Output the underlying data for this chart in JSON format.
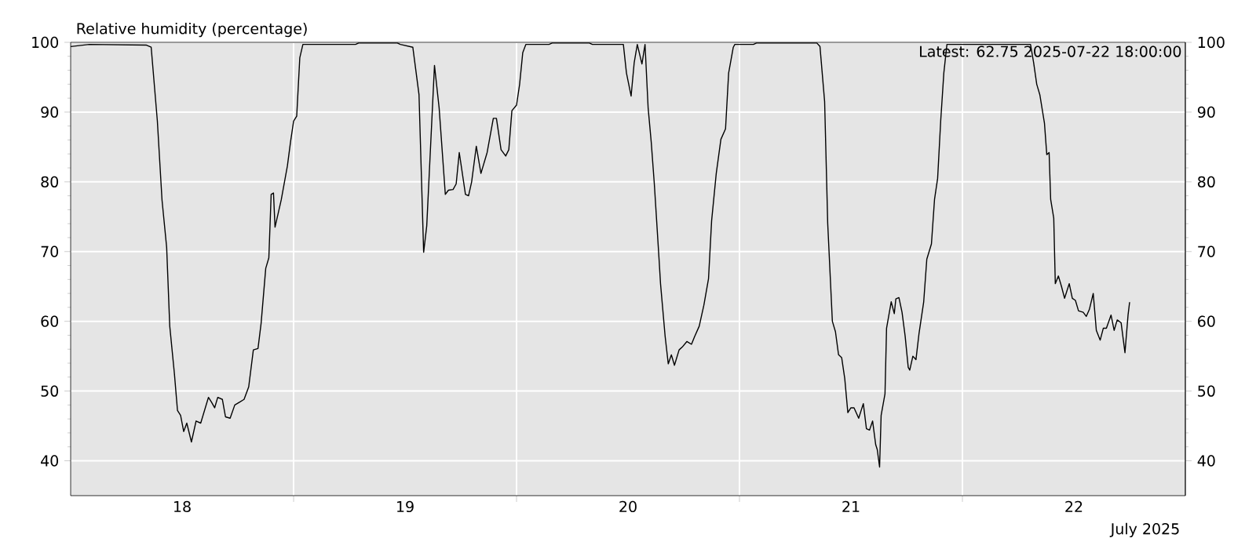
{
  "chart_data": {
    "type": "line",
    "ylabel": "Relative humidity (percentage)",
    "xlabel": "July 2025",
    "annotations": [
      "Latest: 62.75   2025-07-22 18:00:00"
    ],
    "grid": true,
    "xlim": [
      "2025-07-18T00:00",
      "2025-07-23T00:00"
    ],
    "xticks": [
      {
        "value": "2025-07-18T12:00",
        "label": "18"
      },
      {
        "value": "2025-07-19T00:00",
        "label": null
      },
      {
        "value": "2025-07-19T12:00",
        "label": "19"
      },
      {
        "value": "2025-07-20T00:00",
        "label": null
      },
      {
        "value": "2025-07-20T12:00",
        "label": "20"
      },
      {
        "value": "2025-07-21T00:00",
        "label": null
      },
      {
        "value": "2025-07-21T12:00",
        "label": "21"
      },
      {
        "value": "2025-07-22T00:00",
        "label": null
      },
      {
        "value": "2025-07-22T12:00",
        "label": "22"
      }
    ],
    "ylim": [
      35,
      100
    ],
    "yticks": [
      40,
      50,
      60,
      70,
      80,
      90,
      100
    ],
    "y2lim": [
      35,
      100
    ],
    "y2ticks": [
      40,
      50,
      60,
      70,
      80,
      90,
      100
    ],
    "x": [
      "2025-07-18T00:00",
      "2025-07-18T02:00",
      "2025-07-18T08:10",
      "2025-07-18T08:40",
      "2025-07-18T09:20",
      "2025-07-18T09:50",
      "2025-07-18T10:20",
      "2025-07-18T10:40",
      "2025-07-18T11:10",
      "2025-07-18T11:30",
      "2025-07-18T11:50",
      "2025-07-18T12:10",
      "2025-07-18T12:30",
      "2025-07-18T13:00",
      "2025-07-18T13:30",
      "2025-07-18T14:00",
      "2025-07-18T14:50",
      "2025-07-18T15:10",
      "2025-07-18T15:30",
      "2025-07-18T15:50",
      "2025-07-18T16:20",
      "2025-07-18T16:40",
      "2025-07-18T17:10",
      "2025-07-18T17:40",
      "2025-07-18T18:10",
      "2025-07-18T18:40",
      "2025-07-18T19:10",
      "2025-07-18T19:40",
      "2025-07-18T20:10",
      "2025-07-18T20:30",
      "2025-07-18T21:00",
      "2025-07-18T21:20",
      "2025-07-18T21:35",
      "2025-07-18T21:50",
      "2025-07-18T22:00",
      "2025-07-18T22:40",
      "2025-07-18T23:20",
      "2025-07-18T23:40",
      "2025-07-19T00:00",
      "2025-07-19T00:20",
      "2025-07-19T00:40",
      "2025-07-19T01:00",
      "2025-07-19T06:40",
      "2025-07-19T07:00",
      "2025-07-19T11:10",
      "2025-07-19T11:30",
      "2025-07-19T12:50",
      "2025-07-19T13:30",
      "2025-07-19T14:00",
      "2025-07-19T14:20",
      "2025-07-19T15:10",
      "2025-07-19T15:40",
      "2025-07-19T16:20",
      "2025-07-19T16:40",
      "2025-07-19T17:10",
      "2025-07-19T17:30",
      "2025-07-19T17:50",
      "2025-07-19T18:30",
      "2025-07-19T18:50",
      "2025-07-19T19:10",
      "2025-07-19T19:40",
      "2025-07-19T20:10",
      "2025-07-19T20:50",
      "2025-07-19T21:30",
      "2025-07-19T21:50",
      "2025-07-19T22:20",
      "2025-07-19T22:50",
      "2025-07-19T23:10",
      "2025-07-19T23:30",
      "2025-07-20T00:00",
      "2025-07-20T00:20",
      "2025-07-20T00:40",
      "2025-07-20T01:00",
      "2025-07-20T03:30",
      "2025-07-20T03:50",
      "2025-07-20T07:50",
      "2025-07-20T08:10",
      "2025-07-20T11:30",
      "2025-07-20T11:50",
      "2025-07-20T12:20",
      "2025-07-20T12:40",
      "2025-07-20T13:00",
      "2025-07-20T13:30",
      "2025-07-20T13:50",
      "2025-07-20T14:10",
      "2025-07-20T14:30",
      "2025-07-20T14:50",
      "2025-07-20T15:20",
      "2025-07-20T15:30",
      "2025-07-20T16:00",
      "2025-07-20T16:20",
      "2025-07-20T16:40",
      "2025-07-20T17:00",
      "2025-07-20T17:30",
      "2025-07-20T17:50",
      "2025-07-20T18:20",
      "2025-07-20T18:50",
      "2025-07-20T19:10",
      "2025-07-20T19:40",
      "2025-07-20T20:10",
      "2025-07-20T20:40",
      "2025-07-20T21:00",
      "2025-07-20T21:30",
      "2025-07-20T22:00",
      "2025-07-20T22:30",
      "2025-07-20T22:50",
      "2025-07-20T23:20",
      "2025-07-20T23:30",
      "2025-07-21T01:30",
      "2025-07-21T01:50",
      "2025-07-21T08:20",
      "2025-07-21T08:40",
      "2025-07-21T09:10",
      "2025-07-21T09:30",
      "2025-07-21T10:00",
      "2025-07-21T10:20",
      "2025-07-21T10:40",
      "2025-07-21T11:00",
      "2025-07-21T11:20",
      "2025-07-21T11:40",
      "2025-07-21T12:00",
      "2025-07-21T12:20",
      "2025-07-21T12:50",
      "2025-07-21T13:20",
      "2025-07-21T13:40",
      "2025-07-21T14:00",
      "2025-07-21T14:20",
      "2025-07-21T14:40",
      "2025-07-21T14:50",
      "2025-07-21T15:05",
      "2025-07-21T15:15",
      "2025-07-21T15:40",
      "2025-07-21T15:50",
      "2025-07-21T16:20",
      "2025-07-21T16:40",
      "2025-07-21T16:50",
      "2025-07-21T17:10",
      "2025-07-21T17:30",
      "2025-07-21T17:50",
      "2025-07-21T18:10",
      "2025-07-21T18:20",
      "2025-07-21T18:40",
      "2025-07-21T19:00",
      "2025-07-21T19:20",
      "2025-07-21T19:50",
      "2025-07-21T20:10",
      "2025-07-21T20:40",
      "2025-07-21T21:00",
      "2025-07-21T21:20",
      "2025-07-21T21:40",
      "2025-07-21T22:00",
      "2025-07-21T22:20",
      "2025-07-22T07:20",
      "2025-07-22T07:40",
      "2025-07-22T08:00",
      "2025-07-22T08:20",
      "2025-07-22T08:50",
      "2025-07-22T09:05",
      "2025-07-22T09:20",
      "2025-07-22T09:30",
      "2025-07-22T09:50",
      "2025-07-22T10:00",
      "2025-07-22T10:20",
      "2025-07-22T10:40",
      "2025-07-22T11:00",
      "2025-07-22T11:30",
      "2025-07-22T11:50",
      "2025-07-22T12:10",
      "2025-07-22T12:30",
      "2025-07-22T13:00",
      "2025-07-22T13:20",
      "2025-07-22T13:40",
      "2025-07-22T14:05",
      "2025-07-22T14:25",
      "2025-07-22T14:50",
      "2025-07-22T15:10",
      "2025-07-22T15:30",
      "2025-07-22T16:00",
      "2025-07-22T16:20",
      "2025-07-22T16:40",
      "2025-07-22T17:05",
      "2025-07-22T17:30",
      "2025-07-22T17:50",
      "2025-07-22T18:00"
    ],
    "series": [
      {
        "color": "#000000",
        "values": [
          99.4,
          99.7,
          99.6,
          99.3,
          88.7,
          77.4,
          70.6,
          59.3,
          52.5,
          47.2,
          46.5,
          44.2,
          45.4,
          42.7,
          45.7,
          45.4,
          49.1,
          48.4,
          47.6,
          49.1,
          48.8,
          46.3,
          46.1,
          48.0,
          48.4,
          48.8,
          50.6,
          55.9,
          56.1,
          59.7,
          67.6,
          69.1,
          78.2,
          78.4,
          73.5,
          77.4,
          82.3,
          85.7,
          88.7,
          89.4,
          97.8,
          99.7,
          99.7,
          99.9,
          99.9,
          99.7,
          99.3,
          92.5,
          69.9,
          73.7,
          96.7,
          90.6,
          78.2,
          78.8,
          78.9,
          79.7,
          84.2,
          78.2,
          78.0,
          80.0,
          85.1,
          81.2,
          84.2,
          89.1,
          89.1,
          84.6,
          83.7,
          84.6,
          90.2,
          91.0,
          94.0,
          98.5,
          99.7,
          99.7,
          99.9,
          99.9,
          99.7,
          99.7,
          95.6,
          92.3,
          97.1,
          99.7,
          96.9,
          99.7,
          90.6,
          85.7,
          79.7,
          69.1,
          65.4,
          57.8,
          53.9,
          55.2,
          53.7,
          55.9,
          56.3,
          57.1,
          56.7,
          57.8,
          59.3,
          62.3,
          66.1,
          74.4,
          81.2,
          86.1,
          87.6,
          95.6,
          99.3,
          99.7,
          99.7,
          99.9,
          99.9,
          99.4,
          91.5,
          74.0,
          60.0,
          58.5,
          55.2,
          54.8,
          51.8,
          46.9,
          47.6,
          47.6,
          46.1,
          48.2,
          44.6,
          44.4,
          45.7,
          42.3,
          41.6,
          39.1,
          46.5,
          49.6,
          59.0,
          62.8,
          61.1,
          63.2,
          63.4,
          61.3,
          57.9,
          53.4,
          53.0,
          55.0,
          54.5,
          58.3,
          62.8,
          68.9,
          71.1,
          77.5,
          80.5,
          88.8,
          95.6,
          99.7,
          99.7,
          97.1,
          94.0,
          92.5,
          88.4,
          83.9,
          84.2,
          77.5,
          74.8,
          65.4,
          66.5,
          65.0,
          63.3,
          65.4,
          63.3,
          63.0,
          61.5,
          61.3,
          60.7,
          61.7,
          64.0,
          58.7,
          57.3,
          59.0,
          59.0,
          60.9,
          58.7,
          60.2,
          59.8,
          55.5,
          60.9,
          62.75
        ]
      }
    ]
  }
}
